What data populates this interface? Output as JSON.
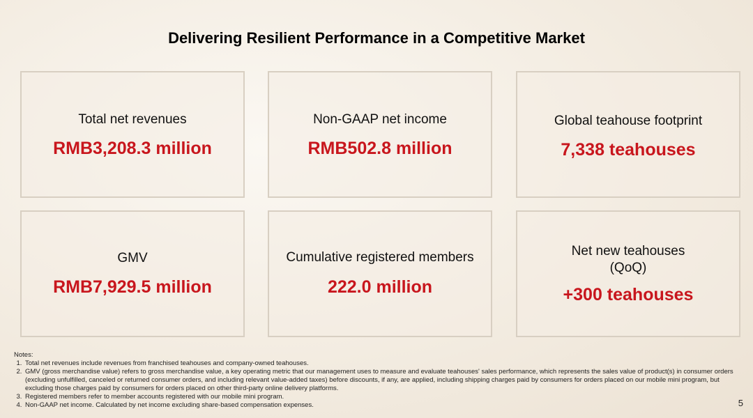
{
  "title": "Delivering Resilient Performance in a Competitive Market",
  "cards": [
    {
      "label": "Total net revenues",
      "value": "RMB3,208.3 million"
    },
    {
      "label": "Non-GAAP net income",
      "value": "RMB502.8 million"
    },
    {
      "label": "Global teahouse footprint",
      "value": "7,338 teahouses"
    },
    {
      "label": "GMV",
      "value": "RMB7,929.5 million"
    },
    {
      "label": "Cumulative registered members",
      "value": "222.0 million"
    },
    {
      "label": "Net new teahouses\n(QoQ)",
      "value": "+300 teahouses"
    }
  ],
  "notes": {
    "heading": "Notes:",
    "items": [
      "Total net revenues include revenues from franchised teahouses and company-owned teahouses.",
      "GMV (gross merchandise value) refers to gross merchandise value, a key operating metric that our management uses to measure and evaluate teahouses' sales performance, which represents the sales value of product(s) in consumer orders (excluding unfulfilled, canceled or returned consumer orders, and including relevant value-added taxes) before discounts, if any, are applied, including shipping charges paid by consumers for orders placed on our mobile mini program, but excluding those charges paid by consumers for orders placed on other third-party online delivery platforms.",
      "Registered members refer to member accounts registered with our mobile mini program.",
      "Non-GAAP net income. Calculated by net income excluding share-based compensation expenses."
    ]
  },
  "page_number": "5"
}
